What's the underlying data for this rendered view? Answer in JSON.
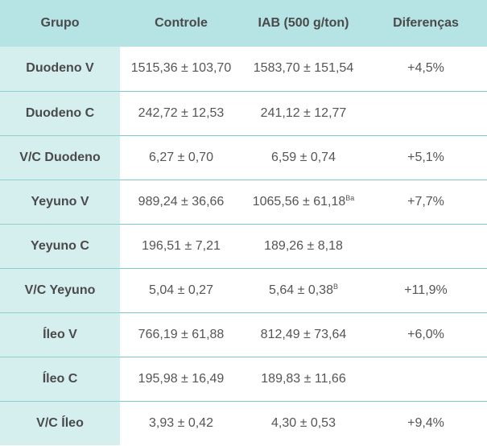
{
  "headers": {
    "grupo": "Grupo",
    "controle": "Controle",
    "iab": "IAB (500 g/ton)",
    "diferencas": "Diferenças"
  },
  "rows": [
    {
      "grupo": "Duodeno V",
      "controle": "1515,36 ± 103,70",
      "iab": "1583,70 ± 151,54",
      "iab_sup": "",
      "diferencas": "+4,5%"
    },
    {
      "grupo": "Duodeno C",
      "controle": "242,72 ± 12,53",
      "iab": "241,12 ± 12,77",
      "iab_sup": "",
      "diferencas": ""
    },
    {
      "grupo": "V/C Duodeno",
      "controle": "6,27 ± 0,70",
      "iab": "6,59 ± 0,74",
      "iab_sup": "",
      "diferencas": "+5,1%"
    },
    {
      "grupo": "Yeyuno V",
      "controle": "989,24 ± 36,66",
      "iab": "1065,56 ± 61,18",
      "iab_sup": "Ba",
      "diferencas": "+7,7%"
    },
    {
      "grupo": "Yeyuno C",
      "controle": "196,51 ± 7,21",
      "iab": "189,26 ± 8,18",
      "iab_sup": "",
      "diferencas": ""
    },
    {
      "grupo": "V/C Yeyuno",
      "controle": "5,04 ± 0,27",
      "iab": "5,64 ± 0,38",
      "iab_sup": "B",
      "diferencas": "+11,9%"
    },
    {
      "grupo": "Íleo V",
      "controle": "766,19 ± 61,88",
      "iab": "812,49 ± 73,64",
      "iab_sup": "",
      "diferencas": "+6,0%"
    },
    {
      "grupo": "Íleo C",
      "controle": "195,98 ± 16,49",
      "iab": "189,83 ± 11,66",
      "iab_sup": "",
      "diferencas": ""
    },
    {
      "grupo": "V/C Íleo",
      "controle": "3,93 ± 0,42",
      "iab": "4,30 ± 0,53",
      "iab_sup": "",
      "diferencas": "+9,4%"
    }
  ]
}
